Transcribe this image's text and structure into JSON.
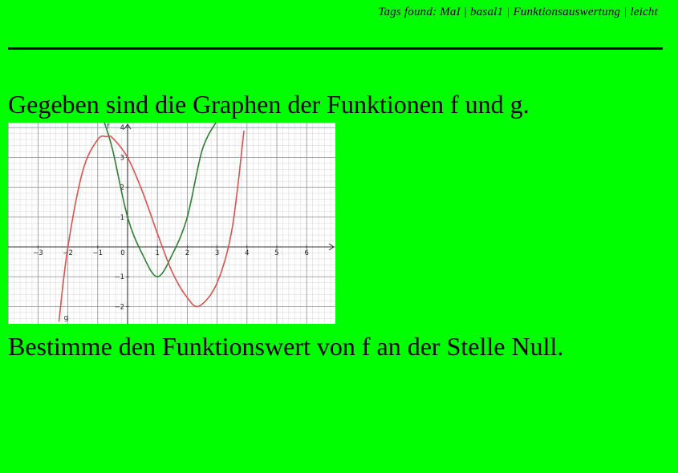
{
  "header": {
    "tags_text": "Tags found: MaI | basal1 | Funktionsauswertung | leicht"
  },
  "question": {
    "intro": "Gegeben sind die Graphen der Funktionen f und g.",
    "task": "Bestimme den Funktionswert von f an der Stelle Null."
  },
  "chart_data": {
    "type": "line",
    "title": "",
    "xlabel": "",
    "ylabel": "",
    "xlim": [
      -4,
      7
    ],
    "ylim": [
      -2.5,
      4.2
    ],
    "x_ticks": [
      "-3",
      "-2",
      "-1",
      "0",
      "1",
      "2",
      "3",
      "4",
      "5",
      "6"
    ],
    "y_ticks": [
      "-2",
      "-1",
      "1",
      "2",
      "3",
      "4"
    ],
    "grid": true,
    "series": [
      {
        "name": "f",
        "color": "#2e7d32",
        "x": [
          -0.8,
          -0.5,
          0,
          0.5,
          1,
          1.5,
          2,
          2.5,
          3
        ],
        "y": [
          4.24,
          3.25,
          1,
          -0.25,
          -1,
          -0.25,
          1,
          3.25,
          4.24
        ]
      },
      {
        "name": "g",
        "color": "#d9534f",
        "x": [
          -2.3,
          -2,
          -1.5,
          -1,
          -0.7,
          -0.5,
          0,
          0.5,
          1,
          1.5,
          2,
          2.4,
          3,
          3.5,
          3.9
        ],
        "y": [
          -2.5,
          0,
          2.55,
          3.6,
          3.7,
          3.65,
          3.0,
          1.85,
          0.45,
          -0.85,
          -1.7,
          -1.98,
          -1.2,
          0.6,
          3.9
        ]
      }
    ]
  }
}
